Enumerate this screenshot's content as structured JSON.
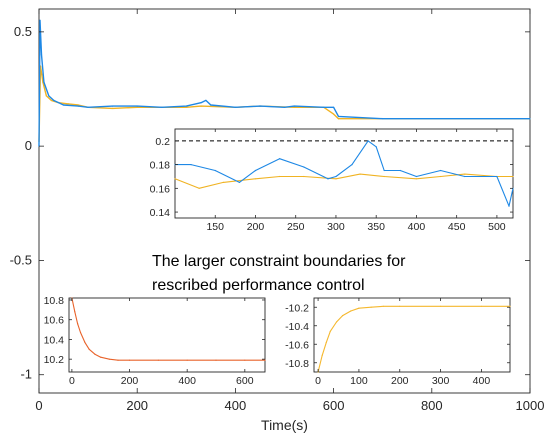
{
  "chart_data": [
    {
      "id": "main",
      "type": "line",
      "xlabel": "Time(s)",
      "ylabel": "",
      "xlim": [
        0,
        1000
      ],
      "ylim": [
        -1.08,
        0.6
      ],
      "xticks": [
        0,
        200,
        400,
        600,
        800,
        1000
      ],
      "yticks": [
        -1,
        -0.5,
        0,
        0.5
      ],
      "annotation": [
        "The larger constraint boundaries for",
        "rescribed performance control"
      ],
      "series": [
        {
          "color": "#F0B323",
          "x": [
            0,
            3,
            8,
            15,
            25,
            40,
            60,
            80,
            100,
            150,
            200,
            280,
            300,
            330,
            400,
            450,
            520,
            580,
            600,
            610,
            1000
          ],
          "y": [
            0.02,
            0.35,
            0.28,
            0.22,
            0.2,
            0.19,
            0.185,
            0.18,
            0.17,
            0.165,
            0.17,
            0.17,
            0.17,
            0.175,
            0.17,
            0.175,
            0.17,
            0.17,
            0.14,
            0.12,
            0.12
          ]
        },
        {
          "color": "#1E88E5",
          "x": [
            0,
            2,
            5,
            10,
            20,
            30,
            50,
            80,
            100,
            150,
            200,
            250,
            300,
            330,
            340,
            350,
            400,
            450,
            500,
            520,
            580,
            600,
            610,
            700,
            1000
          ],
          "y": [
            0.0,
            0.55,
            0.4,
            0.28,
            0.22,
            0.2,
            0.18,
            0.175,
            0.17,
            0.175,
            0.175,
            0.17,
            0.175,
            0.19,
            0.2,
            0.18,
            0.17,
            0.175,
            0.17,
            0.175,
            0.17,
            0.17,
            0.13,
            0.12,
            0.12
          ]
        }
      ]
    },
    {
      "id": "inset-zoom",
      "type": "line",
      "xlim": [
        100,
        520
      ],
      "ylim": [
        0.135,
        0.21
      ],
      "xticks": [
        150,
        200,
        250,
        300,
        350,
        400,
        450,
        500
      ],
      "yticks": [
        0.14,
        0.16,
        0.18,
        0.2
      ],
      "reference_line": {
        "y": 0.2,
        "style": "dashed",
        "color": "#000000"
      },
      "series": [
        {
          "color": "#F0B323",
          "x": [
            100,
            130,
            160,
            200,
            230,
            260,
            300,
            330,
            360,
            400,
            430,
            460,
            500,
            520
          ],
          "y": [
            0.168,
            0.16,
            0.165,
            0.168,
            0.17,
            0.17,
            0.168,
            0.172,
            0.17,
            0.168,
            0.17,
            0.172,
            0.17,
            0.17
          ]
        },
        {
          "color": "#1E88E5",
          "x": [
            100,
            120,
            150,
            180,
            200,
            230,
            260,
            290,
            300,
            320,
            340,
            350,
            360,
            380,
            400,
            430,
            460,
            500,
            515,
            520
          ],
          "y": [
            0.18,
            0.18,
            0.175,
            0.165,
            0.175,
            0.185,
            0.178,
            0.168,
            0.17,
            0.18,
            0.2,
            0.195,
            0.175,
            0.175,
            0.17,
            0.175,
            0.17,
            0.17,
            0.145,
            0.16
          ]
        }
      ]
    },
    {
      "id": "inset-left",
      "type": "line",
      "xlim": [
        -10,
        670
      ],
      "ylim": [
        10.07,
        10.82
      ],
      "xticks": [
        0,
        200,
        400,
        600
      ],
      "yticks": [
        10.2,
        10.4,
        10.6,
        10.8
      ],
      "series": [
        {
          "color": "#E8632B",
          "x": [
            0,
            10,
            20,
            30,
            45,
            60,
            80,
            100,
            130,
            160,
            200,
            300,
            400,
            500,
            600,
            670
          ],
          "y": [
            10.82,
            10.68,
            10.56,
            10.47,
            10.37,
            10.3,
            10.25,
            10.22,
            10.2,
            10.19,
            10.19,
            10.19,
            10.19,
            10.19,
            10.19,
            10.19
          ]
        }
      ]
    },
    {
      "id": "inset-right",
      "type": "line",
      "xlim": [
        -10,
        470
      ],
      "ylim": [
        -10.9,
        -10.1
      ],
      "xticks": [
        0,
        100,
        200,
        300,
        400
      ],
      "yticks": [
        -10.8,
        -10.6,
        -10.4,
        -10.2
      ],
      "series": [
        {
          "color": "#F5B82E",
          "x": [
            0,
            10,
            20,
            30,
            45,
            60,
            80,
            100,
            130,
            160,
            200,
            300,
            400,
            470
          ],
          "y": [
            -10.9,
            -10.72,
            -10.58,
            -10.46,
            -10.36,
            -10.29,
            -10.24,
            -10.21,
            -10.2,
            -10.19,
            -10.19,
            -10.19,
            -10.19,
            -10.19
          ]
        }
      ]
    }
  ]
}
